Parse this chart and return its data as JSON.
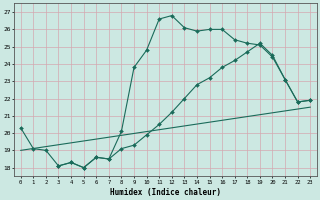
{
  "xlabel": "Humidex (Indice chaleur)",
  "xlim": [
    -0.5,
    23.5
  ],
  "ylim": [
    17.5,
    27.5
  ],
  "xticks": [
    0,
    1,
    2,
    3,
    4,
    5,
    6,
    7,
    8,
    9,
    10,
    11,
    12,
    13,
    14,
    15,
    16,
    17,
    18,
    19,
    20,
    21,
    22,
    23
  ],
  "yticks": [
    18,
    19,
    20,
    21,
    22,
    23,
    24,
    25,
    26,
    27
  ],
  "bg_color": "#cce8e2",
  "grid_color": "#d4a8b0",
  "line_color": "#1a6b5a",
  "line1_x": [
    0,
    1,
    2,
    3,
    4,
    5,
    6,
    7,
    8,
    9,
    10,
    11,
    12,
    13,
    14,
    15,
    16,
    17,
    18,
    19,
    20,
    21,
    22,
    23
  ],
  "line1_y": [
    20.3,
    19.1,
    19.0,
    18.1,
    18.3,
    18.0,
    18.6,
    18.5,
    20.1,
    23.8,
    24.8,
    26.6,
    26.8,
    26.1,
    25.9,
    26.0,
    26.0,
    25.4,
    25.2,
    25.1,
    24.4,
    23.1,
    21.8,
    21.9
  ],
  "line2_x": [
    3,
    4,
    5,
    6,
    7,
    8,
    9,
    10,
    11,
    12,
    13,
    14,
    15,
    16,
    17,
    18,
    19,
    20,
    21,
    22,
    23
  ],
  "line2_y": [
    18.1,
    18.3,
    18.0,
    18.6,
    18.5,
    19.1,
    19.3,
    19.9,
    20.5,
    21.2,
    22.0,
    22.8,
    23.2,
    23.8,
    24.2,
    24.7,
    25.2,
    24.5,
    23.1,
    21.8,
    21.9
  ],
  "line3_x": [
    0,
    23
  ],
  "line3_y": [
    19.0,
    21.5
  ]
}
